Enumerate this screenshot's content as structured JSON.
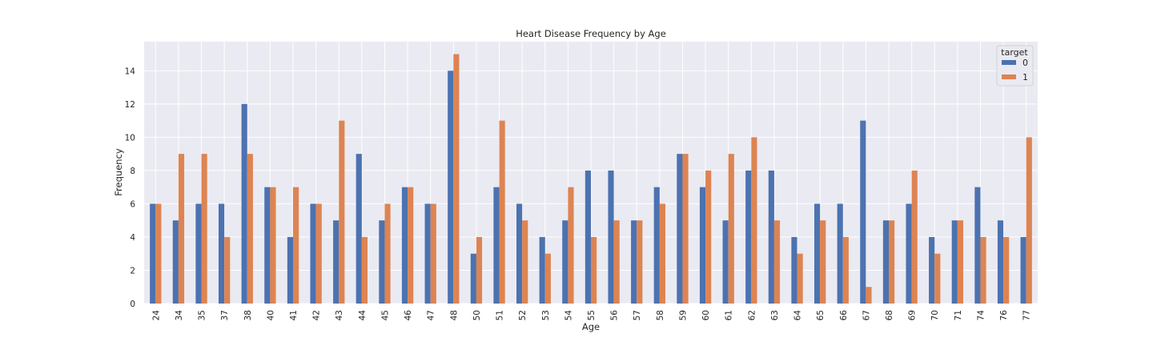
{
  "chart_data": {
    "type": "bar",
    "title": "Heart Disease Frequency by Age",
    "xlabel": "Age",
    "ylabel": "Frequency",
    "ylim": [
      0,
      15.75
    ],
    "yticks": [
      0,
      2,
      4,
      6,
      8,
      10,
      12,
      14
    ],
    "grid": true,
    "legend": {
      "title": "target",
      "position": "top-right"
    },
    "categories": [
      "24",
      "34",
      "35",
      "37",
      "38",
      "40",
      "41",
      "42",
      "43",
      "44",
      "45",
      "46",
      "47",
      "48",
      "50",
      "51",
      "52",
      "53",
      "54",
      "55",
      "56",
      "57",
      "58",
      "59",
      "60",
      "61",
      "62",
      "63",
      "64",
      "65",
      "66",
      "67",
      "68",
      "69",
      "70",
      "71",
      "74",
      "76",
      "77"
    ],
    "series": [
      {
        "name": "0",
        "color": "#4c72b0",
        "values": [
          6,
          5,
          6,
          6,
          12,
          7,
          4,
          6,
          5,
          9,
          5,
          7,
          6,
          14,
          3,
          7,
          6,
          4,
          5,
          8,
          8,
          5,
          7,
          9,
          7,
          5,
          8,
          8,
          4,
          6,
          6,
          11,
          5,
          6,
          4,
          5,
          7,
          5,
          4
        ]
      },
      {
        "name": "1",
        "color": "#dd8452",
        "values": [
          6,
          9,
          9,
          4,
          9,
          7,
          7,
          6,
          11,
          4,
          6,
          7,
          6,
          15,
          4,
          11,
          5,
          3,
          7,
          4,
          5,
          5,
          6,
          9,
          8,
          9,
          10,
          5,
          3,
          5,
          4,
          1,
          5,
          8,
          3,
          5,
          4,
          4,
          10
        ]
      }
    ]
  }
}
